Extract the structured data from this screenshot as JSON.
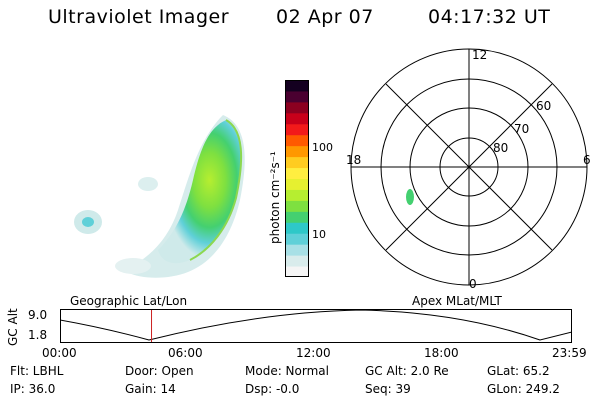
{
  "header": {
    "instrument": "Ultraviolet Imager",
    "date": "02 Apr 07",
    "time": "04:17:32 UT"
  },
  "image_panel": {
    "label": "Geographic Lat/Lon"
  },
  "colorbar": {
    "unit_label": "photon cm⁻²s⁻¹",
    "ticks": [
      "100",
      "10"
    ],
    "scale": "log",
    "colors": [
      "#f5f5f5",
      "#d9ecec",
      "#a8e0e6",
      "#5fd0d8",
      "#2ec8c8",
      "#44d070",
      "#7ee040",
      "#b6ee30",
      "#e6f030",
      "#ffee40",
      "#ffcc20",
      "#ff9800",
      "#ff5a00",
      "#f21a1a",
      "#c8001a",
      "#8c0020",
      "#4a0030",
      "#140020"
    ]
  },
  "polar": {
    "label": "Apex MLat/MLT",
    "mlt_labels": {
      "top": "12",
      "left": "18",
      "right": "6",
      "bottom": "0"
    },
    "lat_labels": [
      "60",
      "70",
      "80"
    ]
  },
  "altitude_strip": {
    "y_label": "GC Alt",
    "y_ticks": [
      "9.0",
      "1.8"
    ],
    "x_ticks": [
      "00:00",
      "06:00",
      "12:00",
      "18:00",
      "23:59"
    ],
    "marker_time_hours": 4.29,
    "marker_color": "#cc2222"
  },
  "footer": {
    "filter": "Flt: LBHL",
    "ip": "IP: 36.0",
    "door": "Door: Open",
    "gain": "Gain: 14",
    "mode": "Mode: Normal",
    "dsp": "Dsp:   -0.0",
    "gc_alt": "GC Alt: 2.0 Re",
    "seq": "Seq: 39",
    "glat": "GLat:   65.2",
    "glon": "GLon: 249.2"
  }
}
